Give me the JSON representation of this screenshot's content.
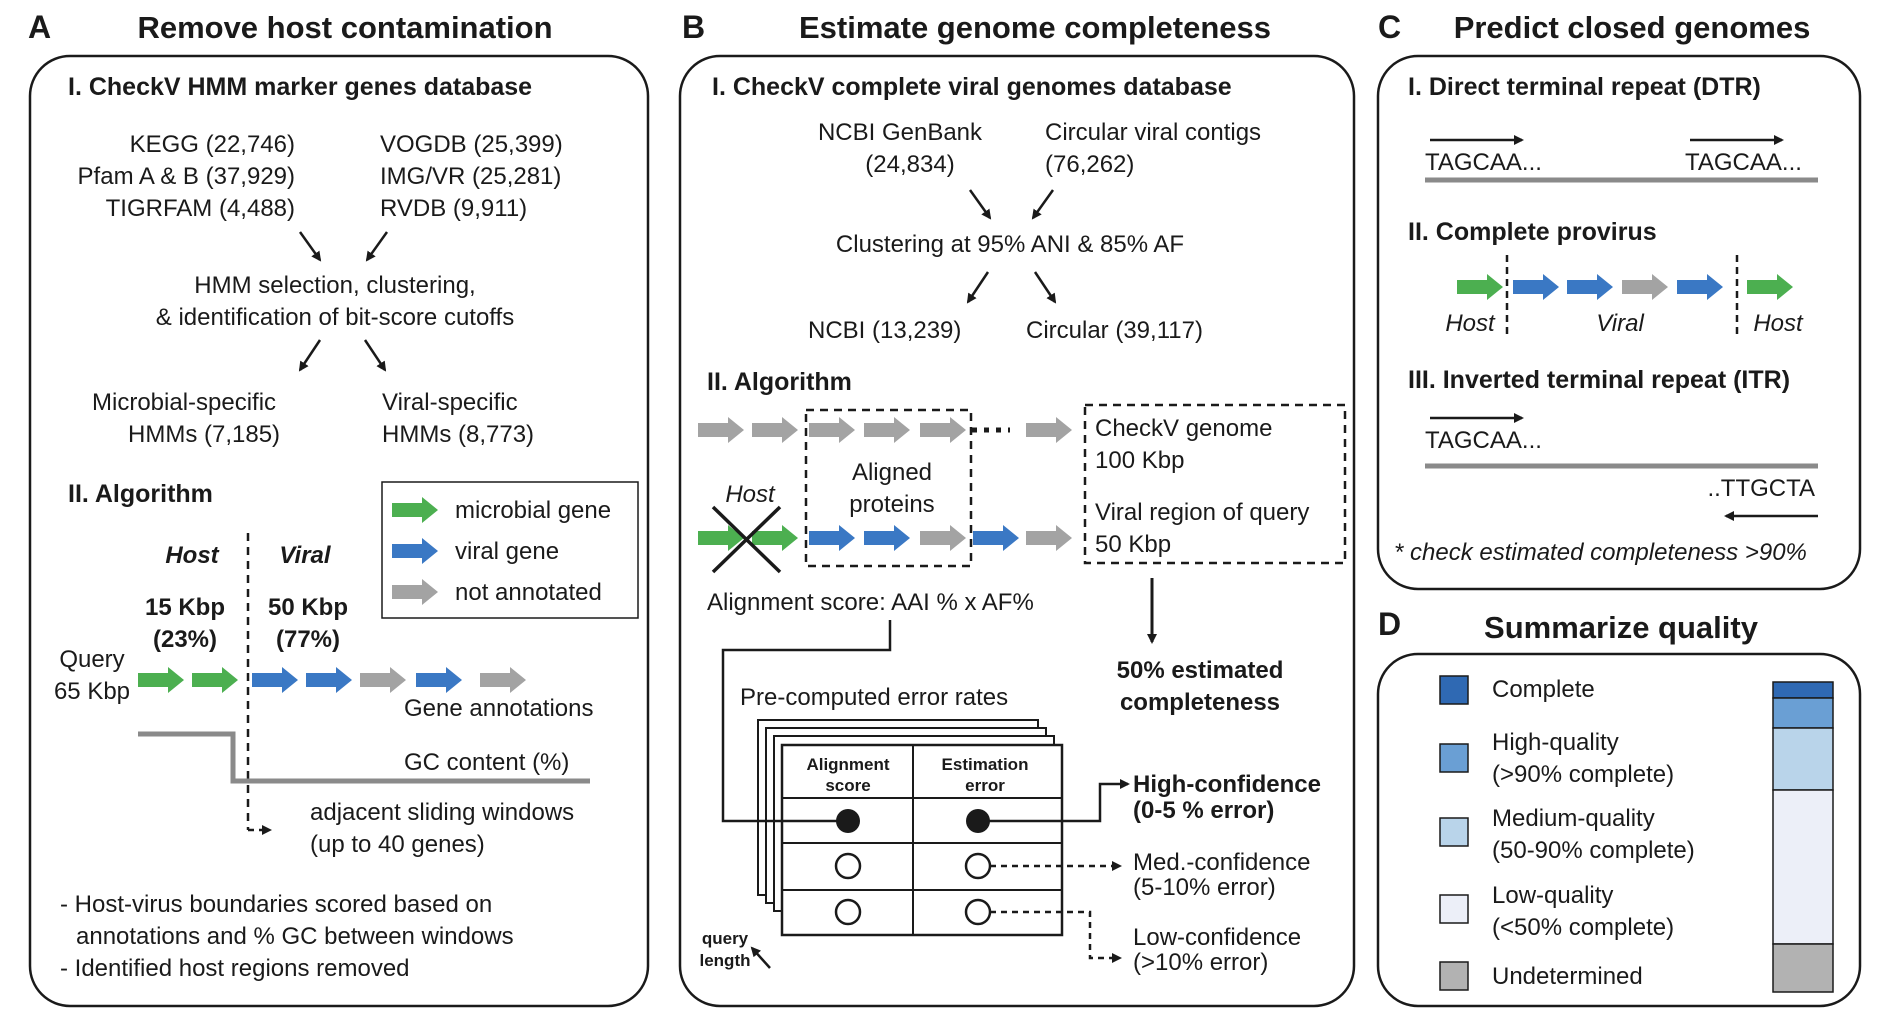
{
  "colors": {
    "microbial_gene": "#4caf50",
    "viral_gene": "#3a78c4",
    "not_annotated": "#a3a3a3",
    "complete": "#2f69b3",
    "high_quality": "#6a9fd4",
    "medium_quality": "#b9d4ea",
    "low_quality": "#eceff8",
    "undetermined": "#b2b2b2"
  },
  "panel_a": {
    "letter": "A",
    "title": "Remove host contamination",
    "sec1": "I. CheckV HMM marker genes database",
    "db_left": [
      "KEGG (22,746)",
      "Pfam A & B (37,929)",
      "TIGRFAM (4,488)"
    ],
    "db_right": [
      "VOGDB (25,399)",
      "IMG/VR (25,281)",
      "RVDB (9,911)"
    ],
    "selection": [
      "HMM selection, clustering,",
      "& identification of bit-score cutoffs"
    ],
    "microbial_hmms": [
      "Microbial-specific",
      "HMMs (7,185)"
    ],
    "viral_hmms": [
      "Viral-specific",
      "HMMs (8,773)"
    ],
    "sec2": "II. Algorithm",
    "legend": [
      "microbial gene",
      "viral gene",
      "not annotated"
    ],
    "host_label": "Host",
    "viral_label": "Viral",
    "host_size": [
      "15 Kbp",
      "(23%)"
    ],
    "viral_size": [
      "50 Kbp",
      "(77%)"
    ],
    "query": [
      "Query",
      "65 Kbp"
    ],
    "gene_annotations": "Gene annotations",
    "gc_content": "GC content (%)",
    "sliding": [
      "adjacent sliding windows",
      "(up to 40 genes)"
    ],
    "notes": [
      "- Host-virus boundaries scored based on",
      "  annotations and % GC between windows",
      "- Identified host regions removed"
    ]
  },
  "panel_b": {
    "letter": "B",
    "title": "Estimate genome completeness",
    "sec1": "I. CheckV complete viral genomes database",
    "ncbi_genbank": [
      "NCBI GenBank",
      "(24,834)"
    ],
    "circular_contigs": [
      "Circular viral contigs",
      "(76,262)"
    ],
    "clustering": "Clustering at 95% ANI & 85% AF",
    "ncbi_result": "NCBI (13,239)",
    "circular_result": "Circular (39,117)",
    "sec2": "II. Algorithm",
    "aligned_proteins": [
      "Aligned",
      "proteins"
    ],
    "host_label": "Host",
    "checkv_genome": [
      "CheckV genome",
      "100 Kbp"
    ],
    "viral_region": [
      "Viral region of query",
      "50 Kbp"
    ],
    "alignment_score": "Alignment score: AAI % x AF%",
    "estimated": [
      "50% estimated",
      "completeness"
    ],
    "precomputed": "Pre-computed error rates",
    "table_headers": [
      [
        "Alignment",
        "score"
      ],
      [
        "Estimation",
        "error"
      ]
    ],
    "query_length": [
      "query",
      "length"
    ],
    "high_conf": [
      "High-confidence",
      "(0-5 % error)"
    ],
    "med_conf": [
      "Med.-confidence",
      "(5-10% error)"
    ],
    "low_conf": [
      "Low-confidence",
      "(>10% error)"
    ]
  },
  "panel_c": {
    "letter": "C",
    "title": "Predict closed genomes",
    "dtr_title": "I. Direct terminal repeat (DTR)",
    "dtr_seq": "TAGCAA...",
    "provirus_title": "II. Complete provirus",
    "host_label": "Host",
    "viral_label": "Viral",
    "itr_title": "III. Inverted terminal repeat (ITR)",
    "itr_seq1": "TAGCAA...",
    "itr_seq2": "..TTGCTA",
    "note": "* check estimated completeness >90%"
  },
  "panel_d": {
    "letter": "D",
    "title": "Summarize quality",
    "legend": [
      {
        "label": [
          "Complete"
        ],
        "color": "#2f69b3"
      },
      {
        "label": [
          "High-quality",
          "(>90% complete)"
        ],
        "color": "#6a9fd4"
      },
      {
        "label": [
          "Medium-quality",
          "(50-90% complete)"
        ],
        "color": "#b9d4ea"
      },
      {
        "label": [
          "Low-quality",
          "(<50% complete)"
        ],
        "color": "#eceff8"
      },
      {
        "label": [
          "Undetermined"
        ],
        "color": "#b2b2b2"
      }
    ]
  }
}
